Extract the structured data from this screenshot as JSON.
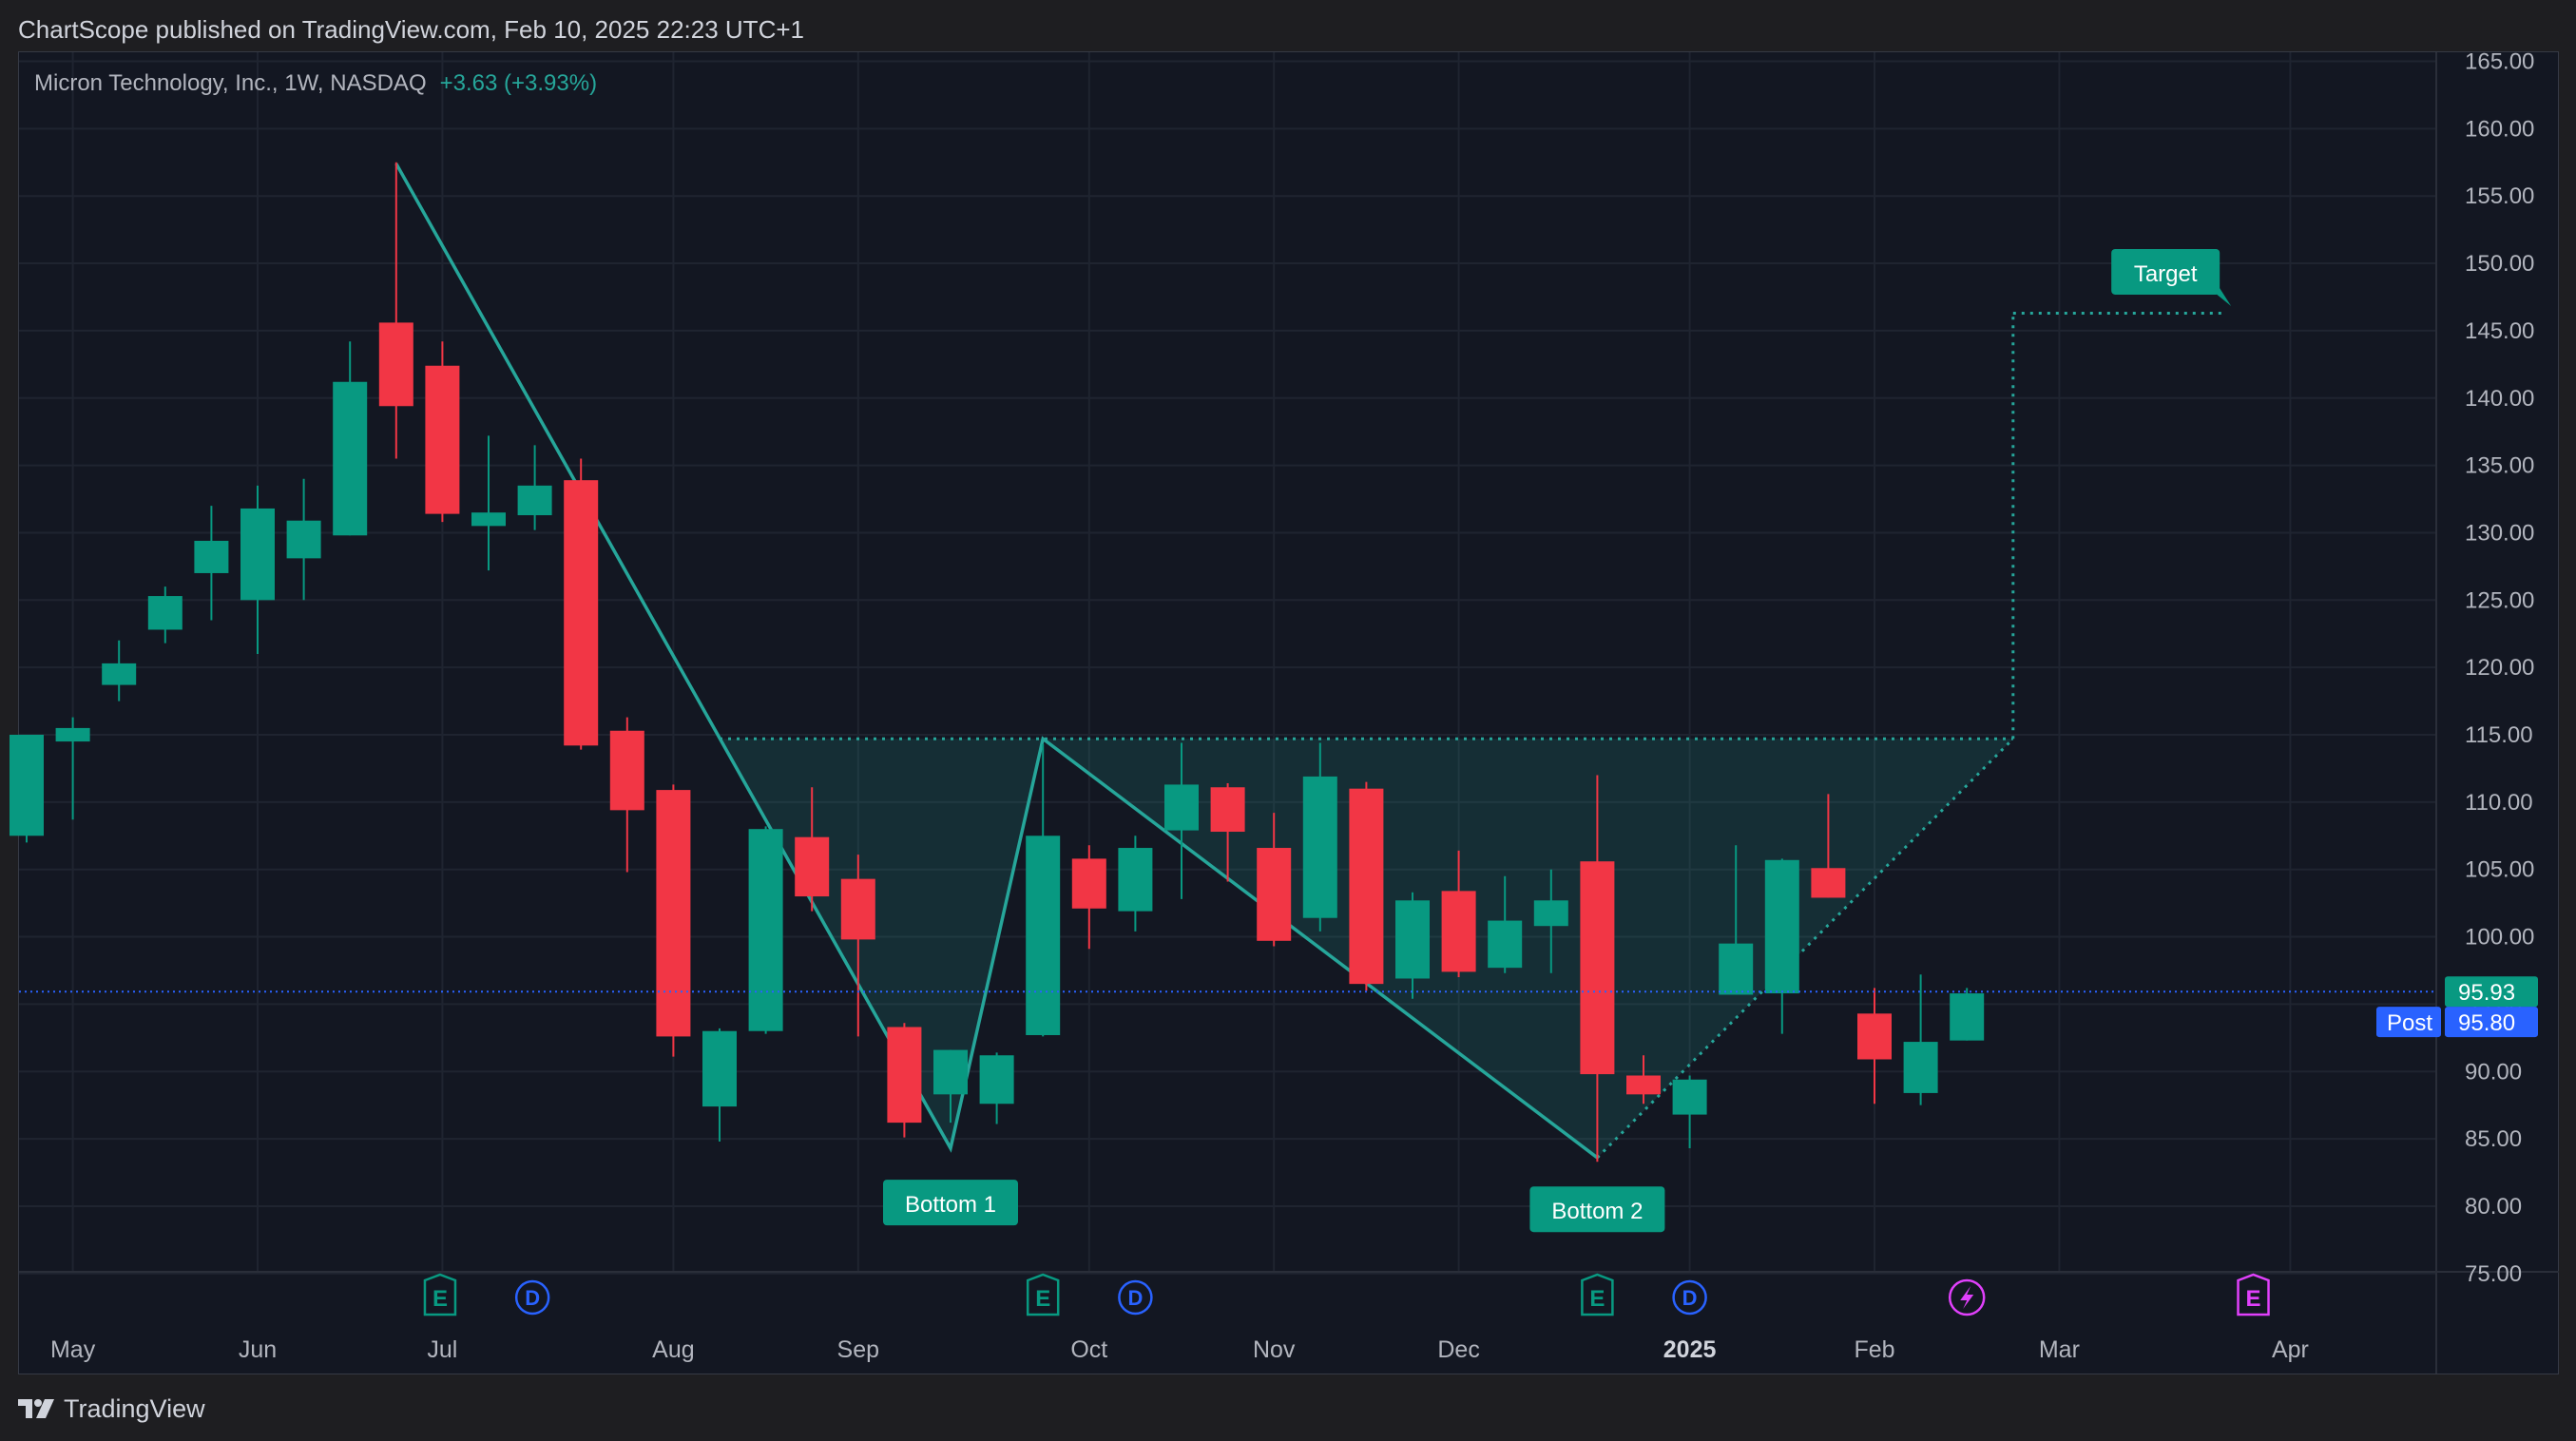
{
  "header": {
    "publish_line": "ChartScope published on TradingView.com, Feb 10, 2025 22:23 UTC+1"
  },
  "legend": {
    "symbol_line": "Micron Technology, Inc., 1W, NASDAQ",
    "change": "+3.63 (+3.93%)"
  },
  "footer": {
    "brand": "TradingView"
  },
  "colors": {
    "up": "#089981",
    "down": "#f23645",
    "background": "#131722",
    "grid": "#1f2430",
    "pattern": "#26a69a",
    "post": "#2962ff"
  },
  "chart_data": {
    "type": "candlestick",
    "symbol": "Micron Technology, Inc.",
    "interval": "1W",
    "exchange": "NASDAQ",
    "ylim": [
      72.5,
      166
    ],
    "y_ticks": [
      "165.00",
      "160.00",
      "155.00",
      "150.00",
      "145.00",
      "140.00",
      "135.00",
      "130.00",
      "125.00",
      "120.00",
      "115.00",
      "110.00",
      "105.00",
      "100.00",
      "95.00",
      "90.00",
      "85.00",
      "80.00",
      "75.00"
    ],
    "x_ticks": [
      {
        "label": "May",
        "week": 1
      },
      {
        "label": "Jun",
        "week": 5
      },
      {
        "label": "Jul",
        "week": 9
      },
      {
        "label": "Aug",
        "week": 14
      },
      {
        "label": "Sep",
        "week": 18
      },
      {
        "label": "Oct",
        "week": 23
      },
      {
        "label": "Nov",
        "week": 27
      },
      {
        "label": "Dec",
        "week": 31
      },
      {
        "label": "2025",
        "week": 36
      },
      {
        "label": "Feb",
        "week": 40
      },
      {
        "label": "Mar",
        "week": 44
      },
      {
        "label": "Apr",
        "week": 49
      }
    ],
    "candles": [
      {
        "w": 0,
        "o": 107.5,
        "h": 115,
        "l": 107,
        "c": 115
      },
      {
        "w": 1,
        "o": 114.5,
        "h": 116.3,
        "l": 108.7,
        "c": 115.5
      },
      {
        "w": 2,
        "o": 118.7,
        "h": 122,
        "l": 117.5,
        "c": 120.3
      },
      {
        "w": 3,
        "o": 122.8,
        "h": 126,
        "l": 121.8,
        "c": 125.3
      },
      {
        "w": 4,
        "o": 127,
        "h": 132,
        "l": 123.5,
        "c": 129.4
      },
      {
        "w": 5,
        "o": 125,
        "h": 133.5,
        "l": 121,
        "c": 131.8
      },
      {
        "w": 6,
        "o": 128.1,
        "h": 134,
        "l": 125,
        "c": 130.9
      },
      {
        "w": 7,
        "o": 129.8,
        "h": 144.2,
        "l": 129.8,
        "c": 141.2
      },
      {
        "w": 8,
        "o": 145.6,
        "h": 157.5,
        "l": 135.5,
        "c": 139.4
      },
      {
        "w": 9,
        "o": 142.4,
        "h": 144.2,
        "l": 130.8,
        "c": 131.4
      },
      {
        "w": 10,
        "o": 130.5,
        "h": 137.2,
        "l": 127.2,
        "c": 131.5
      },
      {
        "w": 11,
        "o": 131.3,
        "h": 136.5,
        "l": 130.2,
        "c": 133.5
      },
      {
        "w": 12,
        "o": 133.9,
        "h": 135.5,
        "l": 113.9,
        "c": 114.2
      },
      {
        "w": 13,
        "o": 115.3,
        "h": 116.3,
        "l": 104.8,
        "c": 109.4
      },
      {
        "w": 14,
        "o": 110.9,
        "h": 111.3,
        "l": 91.1,
        "c": 92.6
      },
      {
        "w": 15,
        "o": 87.4,
        "h": 93.2,
        "l": 84.8,
        "c": 93.0
      },
      {
        "w": 16,
        "o": 93,
        "h": 108.2,
        "l": 92.8,
        "c": 108
      },
      {
        "w": 17,
        "o": 107.4,
        "h": 111.1,
        "l": 101.9,
        "c": 103
      },
      {
        "w": 18,
        "o": 104.3,
        "h": 106.1,
        "l": 92.6,
        "c": 99.8
      },
      {
        "w": 19,
        "o": 93.3,
        "h": 93.6,
        "l": 85.1,
        "c": 86.2
      },
      {
        "w": 20,
        "o": 88.3,
        "h": 91.6,
        "l": 86.2,
        "c": 91.6
      },
      {
        "w": 21,
        "o": 87.6,
        "h": 91.4,
        "l": 86.1,
        "c": 91.2
      },
      {
        "w": 22,
        "o": 92.7,
        "h": 114.3,
        "l": 92.6,
        "c": 107.5
      },
      {
        "w": 23,
        "o": 105.8,
        "h": 106.8,
        "l": 99.1,
        "c": 102.1
      },
      {
        "w": 24,
        "o": 101.9,
        "h": 107.5,
        "l": 100.4,
        "c": 106.6
      },
      {
        "w": 25,
        "o": 107.9,
        "h": 114.4,
        "l": 102.8,
        "c": 111.3
      },
      {
        "w": 26,
        "o": 111.1,
        "h": 111.4,
        "l": 104.1,
        "c": 107.8
      },
      {
        "w": 27,
        "o": 106.6,
        "h": 109.2,
        "l": 99.3,
        "c": 99.7
      },
      {
        "w": 28,
        "o": 101.4,
        "h": 114.4,
        "l": 100.4,
        "c": 111.9
      },
      {
        "w": 29,
        "o": 111,
        "h": 111.5,
        "l": 96,
        "c": 96.5
      },
      {
        "w": 30,
        "o": 96.9,
        "h": 103.3,
        "l": 95.4,
        "c": 102.7
      },
      {
        "w": 31,
        "o": 103.4,
        "h": 106.4,
        "l": 97,
        "c": 97.4
      },
      {
        "w": 32,
        "o": 97.7,
        "h": 104.5,
        "l": 97.3,
        "c": 101.2
      },
      {
        "w": 33,
        "o": 100.8,
        "h": 105,
        "l": 97.3,
        "c": 102.7
      },
      {
        "w": 34,
        "o": 105.6,
        "h": 112,
        "l": 83.3,
        "c": 89.8
      },
      {
        "w": 35,
        "o": 89.7,
        "h": 91.2,
        "l": 87.6,
        "c": 88.3
      },
      {
        "w": 36,
        "o": 86.8,
        "h": 89.7,
        "l": 84.3,
        "c": 89.4
      },
      {
        "w": 37,
        "o": 95.7,
        "h": 106.8,
        "l": 95.7,
        "c": 99.5
      },
      {
        "w": 38,
        "o": 95.8,
        "h": 105.8,
        "l": 92.8,
        "c": 105.7
      },
      {
        "w": 39,
        "o": 105.1,
        "h": 110.6,
        "l": 102.9,
        "c": 102.9
      },
      {
        "w": 40,
        "o": 94.3,
        "h": 96.2,
        "l": 87.6,
        "c": 90.9
      },
      {
        "w": 41,
        "o": 88.4,
        "h": 97.2,
        "l": 87.5,
        "c": 92.2
      },
      {
        "w": 42,
        "o": 92.3,
        "h": 96.2,
        "l": 92.3,
        "c": 95.8
      }
    ],
    "last_price": "95.93",
    "post_price": "95.80",
    "post_label": "Post",
    "pattern": {
      "name": "Double bottom",
      "polyline": [
        [
          8,
          157.4
        ],
        [
          20,
          84.3
        ],
        [
          22,
          114.7
        ],
        [
          34,
          83.6
        ],
        [
          43,
          114.7
        ]
      ],
      "neckline": 114.7,
      "neckline_start_week": 15,
      "target_price": 146.3,
      "labels": [
        {
          "text": "Bottom 1",
          "week": 20,
          "price": 80.2
        },
        {
          "text": "Bottom 2",
          "week": 34,
          "price": 79.7
        },
        {
          "text": "Target",
          "week": 46.3,
          "price": 149.3
        }
      ]
    },
    "events": [
      {
        "type": "E",
        "week": 8.95
      },
      {
        "type": "D",
        "week": 10.95
      },
      {
        "type": "E",
        "week": 22
      },
      {
        "type": "D",
        "week": 24
      },
      {
        "type": "E",
        "week": 34
      },
      {
        "type": "D",
        "week": 36
      },
      {
        "type": "split",
        "week": 42
      },
      {
        "type": "E",
        "week": 48.2
      }
    ]
  }
}
